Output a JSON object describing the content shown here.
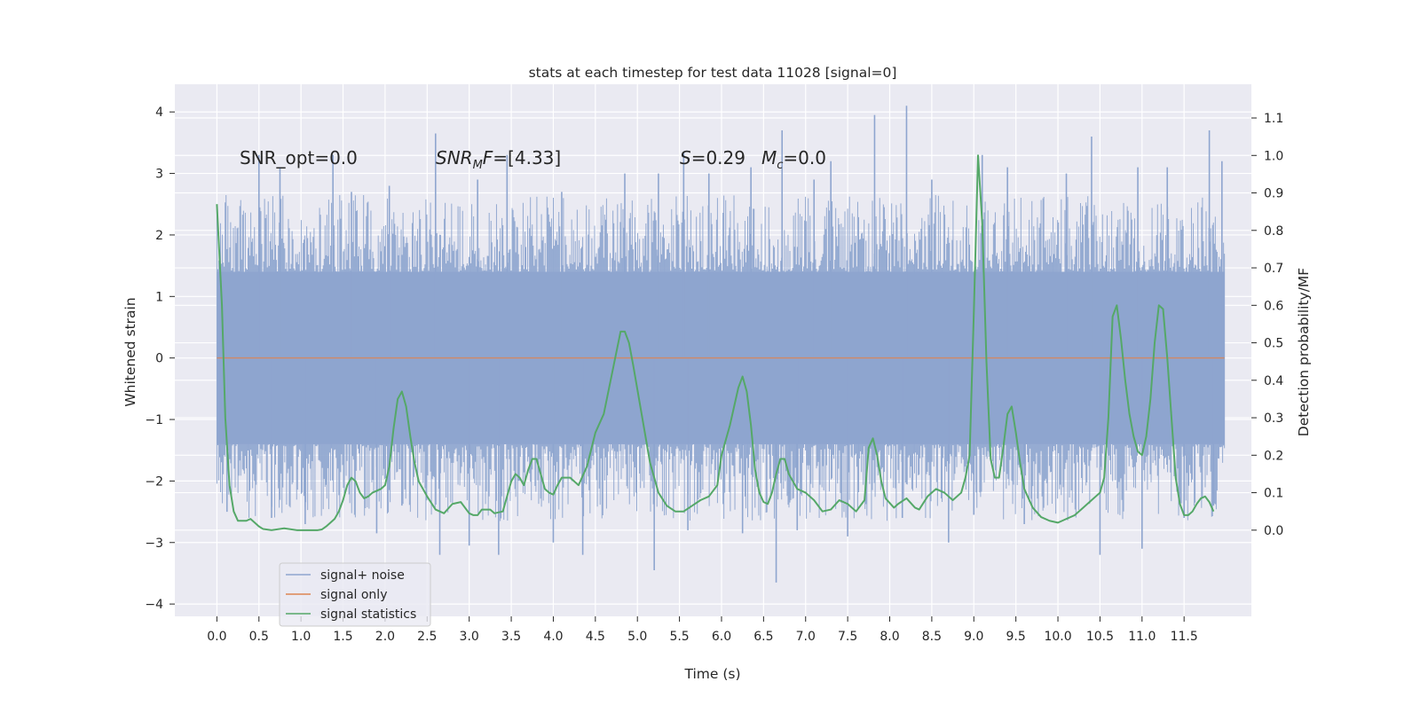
{
  "chart_data": {
    "type": "line",
    "title": "stats at each timestep for test data 11028 [signal=0]",
    "xlabel": "Time (s)",
    "ylabel": "Whitened strain",
    "ylabel_right": "Detection probability/MF",
    "xlim": [
      -0.5,
      12.3
    ],
    "ylim": [
      -4.2,
      4.45
    ],
    "ylim_right": [
      -0.23,
      1.19
    ],
    "x_ticks": [
      "0.0",
      "0.5",
      "1.0",
      "1.5",
      "2.0",
      "2.5",
      "3.0",
      "3.5",
      "4.0",
      "4.5",
      "5.0",
      "5.5",
      "6.0",
      "6.5",
      "7.0",
      "7.5",
      "8.0",
      "8.5",
      "9.0",
      "9.5",
      "10.0",
      "10.5",
      "11.0",
      "11.5"
    ],
    "y_ticks": [
      "4",
      "3",
      "2",
      "1",
      "0",
      "−1",
      "−2",
      "−3",
      "−4"
    ],
    "y_ticks_right": [
      "1.1",
      "1.0",
      "0.9",
      "0.8",
      "0.7",
      "0.6",
      "0.5",
      "0.4",
      "0.3",
      "0.2",
      "0.1",
      "0.0"
    ],
    "annotations": {
      "snr_opt": "SNR_opt=0.0",
      "snr_mf_sym": "SNR",
      "snr_mf_sub": "M",
      "snr_mf_rest": "F=[4.33]",
      "s_sym": "S",
      "s_rest": "=0.29",
      "mc_sym": "M",
      "mc_sub": "c",
      "mc_rest": "=0.0"
    },
    "legend": {
      "placement": "lower-left",
      "entries": [
        "signal+ noise",
        "signal only",
        "signal statistics"
      ]
    },
    "colors": {
      "noise": "#8ea5cf",
      "signal": "#dd8452",
      "stats": "#55a868",
      "axes_bg": "#eaeaf2",
      "grid": "#ffffff"
    },
    "grid": true,
    "series": [
      {
        "name": "signal+ noise",
        "axis": "left",
        "t_range": [
          0.0,
          11.98
        ],
        "band": [
          -1.4,
          1.4
        ],
        "peaks": [
          [
            0.5,
            3.3
          ],
          [
            0.75,
            3.1
          ],
          [
            1.38,
            3.3
          ],
          [
            1.6,
            2.7
          ],
          [
            2.05,
            2.8
          ],
          [
            2.6,
            3.65
          ],
          [
            3.1,
            2.9
          ],
          [
            3.45,
            3.3
          ],
          [
            4.1,
            2.7
          ],
          [
            4.85,
            3.0
          ],
          [
            5.25,
            3.0
          ],
          [
            5.55,
            3.35
          ],
          [
            5.85,
            3.0
          ],
          [
            6.35,
            3.1
          ],
          [
            6.72,
            3.7
          ],
          [
            7.1,
            2.9
          ],
          [
            7.3,
            3.2
          ],
          [
            7.82,
            3.95
          ],
          [
            8.2,
            4.1
          ],
          [
            8.5,
            2.9
          ],
          [
            9.1,
            3.3
          ],
          [
            9.4,
            3.1
          ],
          [
            10.1,
            3.0
          ],
          [
            10.4,
            3.6
          ],
          [
            10.95,
            3.1
          ],
          [
            11.3,
            3.1
          ],
          [
            11.8,
            3.7
          ],
          [
            11.95,
            3.2
          ],
          [
            0.12,
            -2.5
          ],
          [
            0.65,
            -2.6
          ],
          [
            1.05,
            -2.7
          ],
          [
            1.9,
            -2.85
          ],
          [
            2.2,
            -2.4
          ],
          [
            2.65,
            -3.2
          ],
          [
            3.0,
            -3.05
          ],
          [
            3.35,
            -3.2
          ],
          [
            4.0,
            -3.0
          ],
          [
            4.35,
            -3.2
          ],
          [
            5.2,
            -3.45
          ],
          [
            5.6,
            -2.8
          ],
          [
            6.25,
            -2.85
          ],
          [
            6.65,
            -3.65
          ],
          [
            6.9,
            -2.8
          ],
          [
            7.5,
            -2.9
          ],
          [
            8.15,
            -2.6
          ],
          [
            8.7,
            -3.0
          ],
          [
            9.0,
            -2.55
          ],
          [
            9.6,
            -2.7
          ],
          [
            10.5,
            -3.2
          ],
          [
            11.0,
            -3.1
          ],
          [
            11.5,
            -2.6
          ],
          [
            11.85,
            -2.4
          ]
        ]
      },
      {
        "name": "signal only",
        "axis": "left",
        "x": [
          0.0,
          11.98
        ],
        "y": [
          0.0,
          0.0
        ]
      },
      {
        "name": "signal statistics",
        "axis": "right",
        "points": [
          [
            0.0,
            0.87
          ],
          [
            0.06,
            0.6
          ],
          [
            0.1,
            0.3
          ],
          [
            0.15,
            0.12
          ],
          [
            0.2,
            0.05
          ],
          [
            0.25,
            0.025
          ],
          [
            0.35,
            0.025
          ],
          [
            0.4,
            0.03
          ],
          [
            0.45,
            0.02
          ],
          [
            0.5,
            0.01
          ],
          [
            0.55,
            0.003
          ],
          [
            0.65,
            0.0
          ],
          [
            0.8,
            0.005
          ],
          [
            0.95,
            0.0
          ],
          [
            1.1,
            0.0
          ],
          [
            1.2,
            0.0
          ],
          [
            1.25,
            0.002
          ],
          [
            1.3,
            0.01
          ],
          [
            1.4,
            0.03
          ],
          [
            1.45,
            0.05
          ],
          [
            1.5,
            0.08
          ],
          [
            1.55,
            0.12
          ],
          [
            1.6,
            0.14
          ],
          [
            1.65,
            0.13
          ],
          [
            1.7,
            0.1
          ],
          [
            1.75,
            0.085
          ],
          [
            1.8,
            0.09
          ],
          [
            1.85,
            0.1
          ],
          [
            1.9,
            0.105
          ],
          [
            1.95,
            0.11
          ],
          [
            2.0,
            0.12
          ],
          [
            2.05,
            0.17
          ],
          [
            2.1,
            0.27
          ],
          [
            2.15,
            0.35
          ],
          [
            2.2,
            0.37
          ],
          [
            2.25,
            0.33
          ],
          [
            2.3,
            0.25
          ],
          [
            2.35,
            0.18
          ],
          [
            2.4,
            0.13
          ],
          [
            2.5,
            0.09
          ],
          [
            2.6,
            0.055
          ],
          [
            2.7,
            0.045
          ],
          [
            2.8,
            0.07
          ],
          [
            2.9,
            0.075
          ],
          [
            3.0,
            0.045
          ],
          [
            3.05,
            0.04
          ],
          [
            3.1,
            0.04
          ],
          [
            3.15,
            0.055
          ],
          [
            3.25,
            0.055
          ],
          [
            3.3,
            0.045
          ],
          [
            3.4,
            0.05
          ],
          [
            3.45,
            0.09
          ],
          [
            3.5,
            0.13
          ],
          [
            3.55,
            0.15
          ],
          [
            3.6,
            0.14
          ],
          [
            3.65,
            0.12
          ],
          [
            3.7,
            0.16
          ],
          [
            3.75,
            0.19
          ],
          [
            3.8,
            0.19
          ],
          [
            3.85,
            0.15
          ],
          [
            3.9,
            0.11
          ],
          [
            3.95,
            0.1
          ],
          [
            4.0,
            0.095
          ],
          [
            4.05,
            0.12
          ],
          [
            4.1,
            0.14
          ],
          [
            4.2,
            0.14
          ],
          [
            4.3,
            0.12
          ],
          [
            4.4,
            0.17
          ],
          [
            4.5,
            0.26
          ],
          [
            4.6,
            0.31
          ],
          [
            4.7,
            0.42
          ],
          [
            4.8,
            0.53
          ],
          [
            4.85,
            0.53
          ],
          [
            4.9,
            0.5
          ],
          [
            4.95,
            0.44
          ],
          [
            5.05,
            0.31
          ],
          [
            5.15,
            0.18
          ],
          [
            5.25,
            0.1
          ],
          [
            5.35,
            0.065
          ],
          [
            5.45,
            0.05
          ],
          [
            5.55,
            0.05
          ],
          [
            5.65,
            0.065
          ],
          [
            5.75,
            0.08
          ],
          [
            5.85,
            0.09
          ],
          [
            5.95,
            0.12
          ],
          [
            6.0,
            0.2
          ],
          [
            6.1,
            0.28
          ],
          [
            6.2,
            0.38
          ],
          [
            6.25,
            0.41
          ],
          [
            6.3,
            0.37
          ],
          [
            6.35,
            0.28
          ],
          [
            6.4,
            0.16
          ],
          [
            6.45,
            0.1
          ],
          [
            6.5,
            0.075
          ],
          [
            6.55,
            0.07
          ],
          [
            6.6,
            0.1
          ],
          [
            6.65,
            0.15
          ],
          [
            6.7,
            0.19
          ],
          [
            6.75,
            0.19
          ],
          [
            6.8,
            0.15
          ],
          [
            6.9,
            0.11
          ],
          [
            7.0,
            0.1
          ],
          [
            7.1,
            0.08
          ],
          [
            7.2,
            0.05
          ],
          [
            7.3,
            0.055
          ],
          [
            7.4,
            0.08
          ],
          [
            7.5,
            0.07
          ],
          [
            7.6,
            0.05
          ],
          [
            7.7,
            0.08
          ],
          [
            7.75,
            0.22
          ],
          [
            7.8,
            0.245
          ],
          [
            7.85,
            0.2
          ],
          [
            7.9,
            0.13
          ],
          [
            7.95,
            0.085
          ],
          [
            8.05,
            0.06
          ],
          [
            8.1,
            0.07
          ],
          [
            8.2,
            0.085
          ],
          [
            8.3,
            0.06
          ],
          [
            8.35,
            0.055
          ],
          [
            8.45,
            0.09
          ],
          [
            8.55,
            0.11
          ],
          [
            8.65,
            0.1
          ],
          [
            8.75,
            0.08
          ],
          [
            8.85,
            0.1
          ],
          [
            8.9,
            0.14
          ],
          [
            8.95,
            0.2
          ],
          [
            9.0,
            0.58
          ],
          [
            9.05,
            1.0
          ],
          [
            9.1,
            0.82
          ],
          [
            9.15,
            0.45
          ],
          [
            9.2,
            0.19
          ],
          [
            9.25,
            0.14
          ],
          [
            9.3,
            0.14
          ],
          [
            9.35,
            0.22
          ],
          [
            9.4,
            0.31
          ],
          [
            9.45,
            0.33
          ],
          [
            9.5,
            0.26
          ],
          [
            9.55,
            0.18
          ],
          [
            9.6,
            0.11
          ],
          [
            9.7,
            0.06
          ],
          [
            9.8,
            0.035
          ],
          [
            9.9,
            0.025
          ],
          [
            10.0,
            0.02
          ],
          [
            10.1,
            0.03
          ],
          [
            10.2,
            0.04
          ],
          [
            10.3,
            0.06
          ],
          [
            10.4,
            0.08
          ],
          [
            10.5,
            0.1
          ],
          [
            10.55,
            0.14
          ],
          [
            10.6,
            0.3
          ],
          [
            10.65,
            0.57
          ],
          [
            10.7,
            0.6
          ],
          [
            10.75,
            0.51
          ],
          [
            10.8,
            0.4
          ],
          [
            10.85,
            0.31
          ],
          [
            10.9,
            0.25
          ],
          [
            10.95,
            0.21
          ],
          [
            11.0,
            0.2
          ],
          [
            11.05,
            0.25
          ],
          [
            11.1,
            0.35
          ],
          [
            11.15,
            0.5
          ],
          [
            11.2,
            0.6
          ],
          [
            11.25,
            0.59
          ],
          [
            11.3,
            0.46
          ],
          [
            11.35,
            0.3
          ],
          [
            11.4,
            0.14
          ],
          [
            11.45,
            0.07
          ],
          [
            11.5,
            0.04
          ],
          [
            11.55,
            0.04
          ],
          [
            11.6,
            0.05
          ],
          [
            11.65,
            0.07
          ],
          [
            11.7,
            0.085
          ],
          [
            11.75,
            0.09
          ],
          [
            11.8,
            0.075
          ],
          [
            11.85,
            0.05
          ]
        ]
      }
    ]
  }
}
